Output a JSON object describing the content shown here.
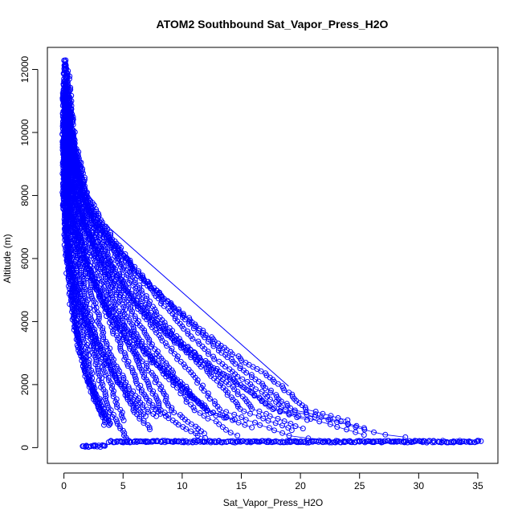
{
  "chart_data": {
    "type": "scatter",
    "title": "ATOM2 Southbound Sat_Vapor_Press_H2O",
    "xlabel": "Sat_Vapor_Press_H2O",
    "ylabel": "Altitude (m)",
    "xlim": [
      -1.4,
      36.7
    ],
    "ylim": [
      -500,
      12700
    ],
    "x_ticks": [
      0,
      5,
      10,
      15,
      20,
      25,
      30,
      35
    ],
    "y_ticks": [
      0,
      2000,
      4000,
      6000,
      8000,
      10000,
      12000
    ],
    "grid": false,
    "legend": "none",
    "marker": "open-circle",
    "connected": true,
    "series_color": "#0000ff",
    "envelope_max": [
      [
        0.3,
        12300
      ],
      [
        1.0,
        9500
      ],
      [
        2.0,
        8000
      ],
      [
        3.2,
        7200
      ],
      [
        6.5,
        5600
      ],
      [
        9.0,
        4600
      ],
      [
        12.0,
        3600
      ],
      [
        15.0,
        2800
      ],
      [
        18.5,
        2000
      ],
      [
        21.5,
        1200
      ],
      [
        26.0,
        800
      ],
      [
        30.0,
        400
      ],
      [
        35.2,
        200
      ]
    ],
    "envelope_min": [
      [
        0.0,
        12300
      ],
      [
        0.0,
        10000
      ],
      [
        0.0,
        8000
      ],
      [
        0.2,
        6000
      ],
      [
        0.8,
        4000
      ],
      [
        2.0,
        2000
      ],
      [
        3.0,
        1000
      ],
      [
        3.8,
        300
      ],
      [
        4.0,
        100
      ]
    ],
    "surface_runs": [
      {
        "x": [
          1.5,
          3.5
        ],
        "y": 50
      },
      {
        "x": [
          3.8,
          35.2
        ],
        "y": 190
      }
    ],
    "highlight_segments": [
      [
        [
          3.0,
          7250
        ],
        [
          19.0,
          1950
        ]
      ]
    ]
  }
}
